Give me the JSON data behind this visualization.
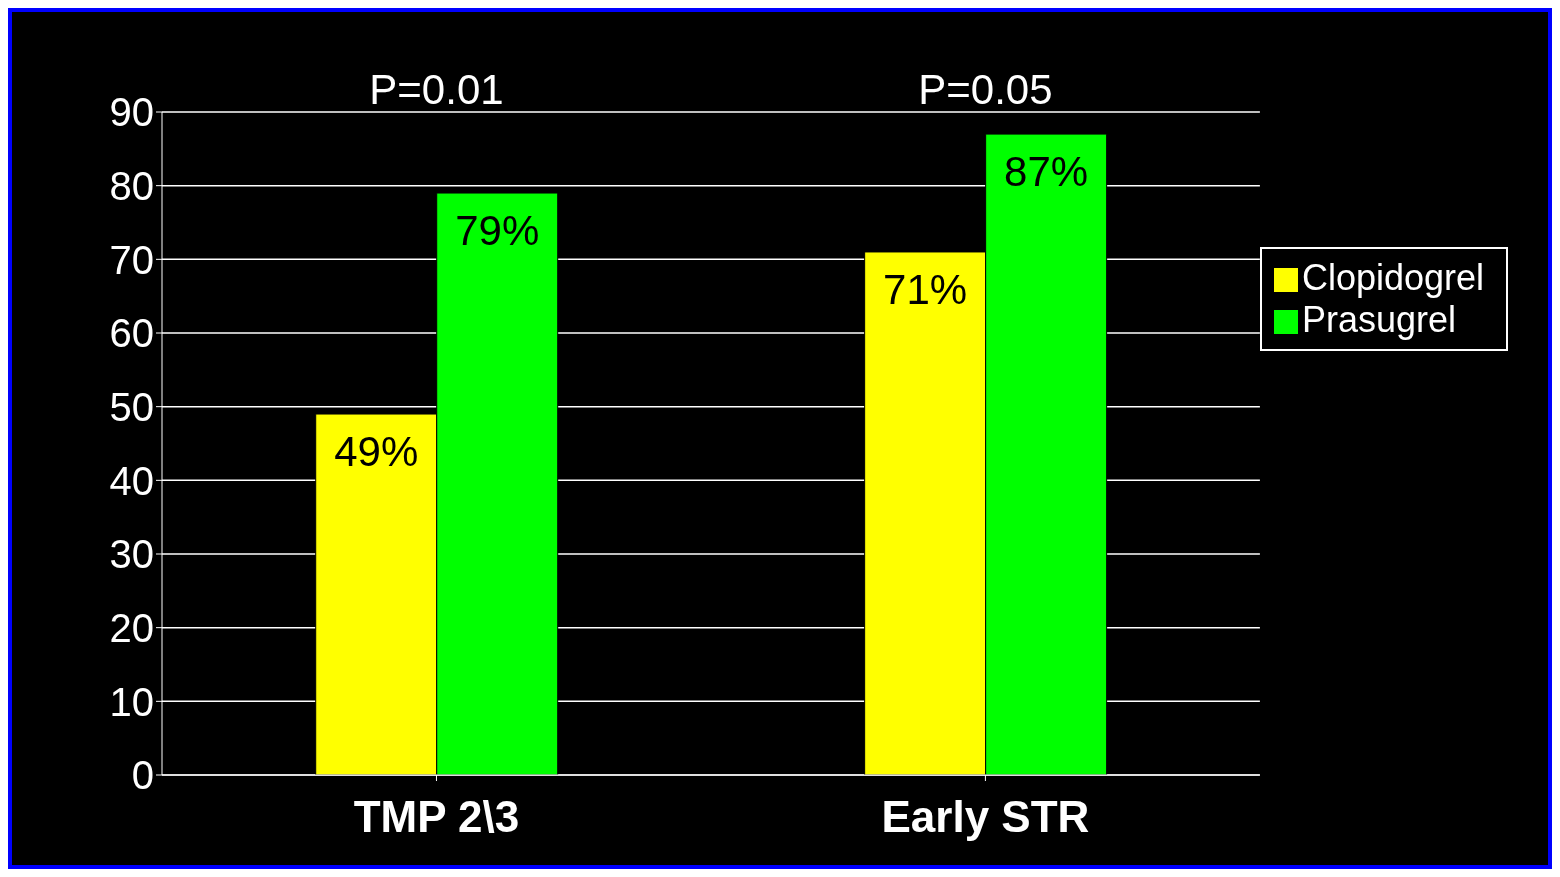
{
  "chart_data": {
    "type": "bar",
    "categories": [
      "TMP 2\\3",
      "Early STR"
    ],
    "series": [
      {
        "name": "Clopidogrel",
        "color": "#ffff00",
        "values": [
          49,
          71
        ],
        "value_labels": [
          "49%",
          "71%"
        ]
      },
      {
        "name": "Prasugrel",
        "color": "#00ff00",
        "values": [
          79,
          87
        ],
        "value_labels": [
          "79%",
          "87%"
        ]
      }
    ],
    "annotations": [
      "P=0.01",
      "P=0.05"
    ],
    "ylim": [
      0,
      90
    ],
    "yticks": [
      0,
      10,
      20,
      30,
      40,
      50,
      60,
      70,
      80,
      90
    ],
    "grid": "y",
    "legend": "right"
  }
}
